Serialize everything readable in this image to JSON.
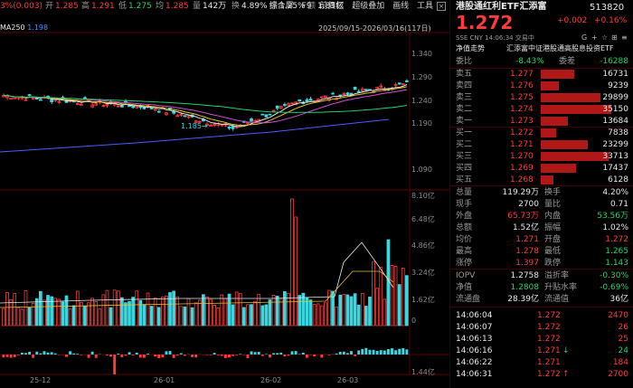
{
  "toolbar": {
    "pct_change": "3%(0.003)",
    "open_label": "开",
    "open": "1.285",
    "high_label": "高",
    "high": "1.291",
    "low_label": "低",
    "low": "1.275",
    "avg_label": "均",
    "avg": "1.285",
    "vol_label": "量",
    "vol": "142万",
    "turn_label": "换",
    "turn": "4.89%",
    "amp_label": "振",
    "amp": "1.25%",
    "amt_label": "额",
    "amt": "1.83亿",
    "menu": [
      "综合屏",
      "F9",
      "前复权",
      "超级叠加",
      "画线",
      "工具"
    ]
  },
  "ma": {
    "label": "MA250",
    "value": "1.198"
  },
  "range": "2025/09/15-2026/03/16(117日)",
  "price_axis": [
    "1.340",
    "1.290",
    "1.240",
    "1.190",
    "1.090"
  ],
  "low_marker": "1.185",
  "vol_axis": [
    "8.10亿",
    "6.48亿",
    "4.86亿",
    "3.24亿",
    "1.62亿",
    "0"
  ],
  "flow_axis": [
    "1.44亿",
    "-8000万"
  ],
  "dates": [
    "25-12",
    "26-01",
    "26-02",
    "26-03"
  ],
  "header": {
    "name": "港股通红利ETF汇添富",
    "code": "513820",
    "price": "1.272",
    "change": "+0.002",
    "change_pct": "+0.16%",
    "meta": "SSE CNY 14:06:34 交易中",
    "net_label": "净值走势",
    "fund_co": "汇添富中证港股通高股息投资ETF"
  },
  "weibi": {
    "label": "委比",
    "pct": "-8.43%",
    "diff_label": "委差",
    "diff": "-16288"
  },
  "asks": [
    {
      "label": "卖五",
      "price": "1.277",
      "vol": "16731",
      "bar": 0.37
    },
    {
      "label": "卖四",
      "price": "1.276",
      "vol": "9239",
      "bar": 0.2
    },
    {
      "label": "卖三",
      "price": "1.275",
      "vol": "29899",
      "bar": 0.66
    },
    {
      "label": "卖二",
      "price": "1.274",
      "vol": "35150",
      "bar": 0.78
    },
    {
      "label": "卖一",
      "price": "1.273",
      "vol": "13684",
      "bar": 0.3
    }
  ],
  "bids": [
    {
      "label": "买一",
      "price": "1.272",
      "vol": "7838",
      "bar": 0.17
    },
    {
      "label": "买二",
      "price": "1.271",
      "vol": "23299",
      "bar": 0.52
    },
    {
      "label": "买三",
      "price": "1.270",
      "vol": "33713",
      "bar": 0.75
    },
    {
      "label": "买四",
      "price": "1.269",
      "vol": "17437",
      "bar": 0.39
    },
    {
      "label": "买五",
      "price": "1.268",
      "vol": "6128",
      "bar": 0.14
    }
  ],
  "stats": [
    [
      {
        "k": "总量",
        "v": "119.29万",
        "cl": "w"
      },
      {
        "k": "换手",
        "v": "4.20%",
        "cl": "w"
      }
    ],
    [
      {
        "k": "现手",
        "v": "2700",
        "cl": "w"
      },
      {
        "k": "量比",
        "v": "0.71",
        "cl": "w"
      }
    ],
    [
      {
        "k": "外盘",
        "v": "65.73万",
        "cl": "r"
      },
      {
        "k": "内盘",
        "v": "53.56万",
        "cl": "g"
      }
    ],
    [
      {
        "k": "总额",
        "v": "1.52亿",
        "cl": "w"
      },
      {
        "k": "振幅",
        "v": "1.02%",
        "cl": "w"
      }
    ],
    [
      {
        "k": "均价",
        "v": "1.271",
        "cl": "r"
      },
      {
        "k": "开盘",
        "v": "1.272",
        "cl": "r"
      }
    ],
    [
      {
        "k": "最高",
        "v": "1.278",
        "cl": "r"
      },
      {
        "k": "最低",
        "v": "1.265",
        "cl": "g"
      }
    ],
    [
      {
        "k": "涨停",
        "v": "1.397",
        "cl": "r"
      },
      {
        "k": "跌停",
        "v": "1.143",
        "cl": "g"
      }
    ]
  ],
  "stats2": [
    [
      {
        "k": "IOPV",
        "v": "1.2758",
        "cl": "w"
      },
      {
        "k": "溢折率",
        "v": "-0.30%",
        "cl": "g"
      }
    ],
    [
      {
        "k": "净值",
        "v": "1.2808",
        "cl": "g"
      },
      {
        "k": "升贴水率",
        "v": "-0.69%",
        "cl": "g"
      }
    ],
    [
      {
        "k": "流通盘",
        "v": "28.39亿",
        "cl": "w"
      },
      {
        "k": "流通值",
        "v": "36亿",
        "cl": "w"
      }
    ]
  ],
  "ticks": [
    {
      "t": "14:06:04",
      "p": "1.272",
      "arrow": "",
      "v": "2470"
    },
    {
      "t": "14:06:07",
      "p": "1.272",
      "arrow": "",
      "v": "26"
    },
    {
      "t": "14:06:13",
      "p": "1.272",
      "arrow": "",
      "v": "25"
    },
    {
      "t": "14:06:16",
      "p": "1.271",
      "arrow": "↓",
      "v": "24"
    },
    {
      "t": "14:06:22",
      "p": "1.271",
      "arrow": "",
      "v": "184"
    },
    {
      "t": "14:06:31",
      "p": "1.272",
      "arrow": "↑",
      "v": "2700"
    }
  ]
}
